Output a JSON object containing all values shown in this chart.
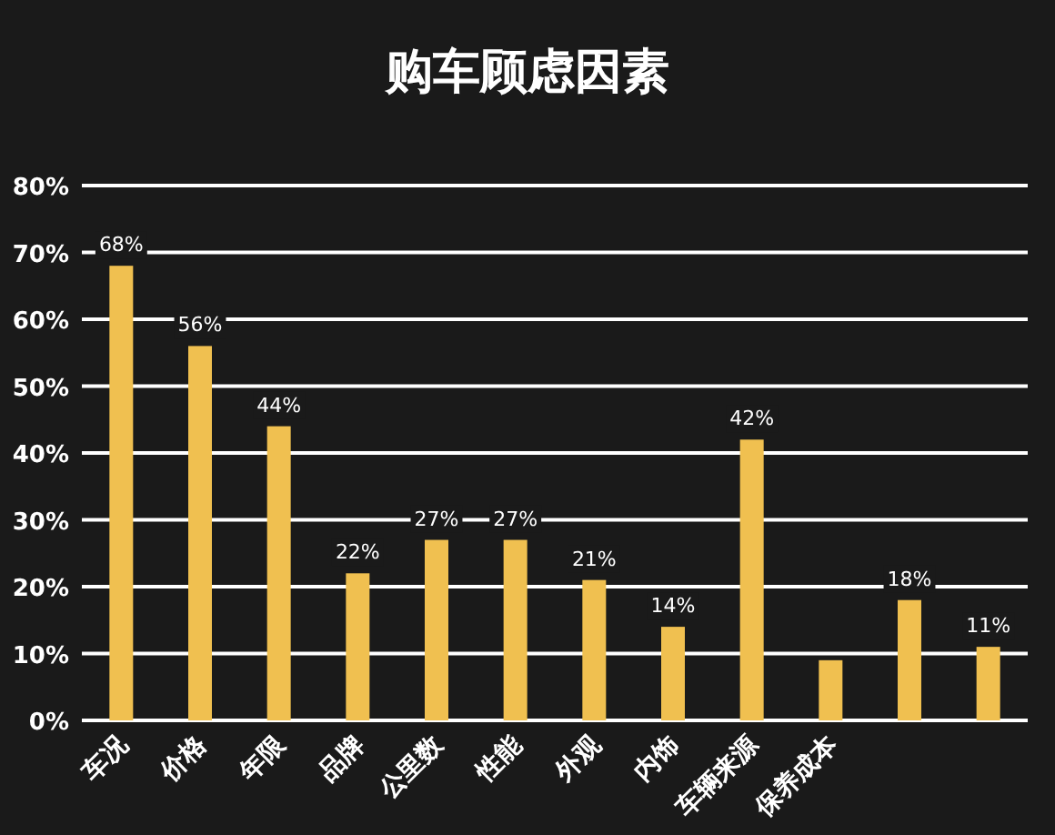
{
  "chart_data": {
    "type": "bar",
    "title": "购车顾虑因素",
    "categories": [
      "车况",
      "价格",
      "年限",
      "品牌",
      "公里数",
      "性能",
      "外观",
      "内饰",
      "车辆来源",
      "保养成本",
      null,
      null
    ],
    "values": [
      68,
      56,
      44,
      22,
      27,
      27,
      21,
      14,
      42,
      9,
      18,
      11
    ],
    "value_labels": [
      "68%",
      "56%",
      "44%",
      "22%",
      "27%",
      "27%",
      "21%",
      "14%",
      "42%",
      null,
      "18%",
      "11%"
    ],
    "color": "#f0c050",
    "ylim": [
      0,
      80
    ],
    "yticks": [
      {
        "value": 0,
        "label": "0%"
      },
      {
        "value": 10,
        "label": "10%"
      },
      {
        "value": 20,
        "label": "20%"
      },
      {
        "value": 30,
        "label": "30%"
      },
      {
        "value": 40,
        "label": "40%"
      },
      {
        "value": 50,
        "label": "50%"
      },
      {
        "value": 60,
        "label": "60%"
      },
      {
        "value": 70,
        "label": "70%"
      },
      {
        "value": 80,
        "label": "80%"
      }
    ],
    "grid": "y"
  }
}
